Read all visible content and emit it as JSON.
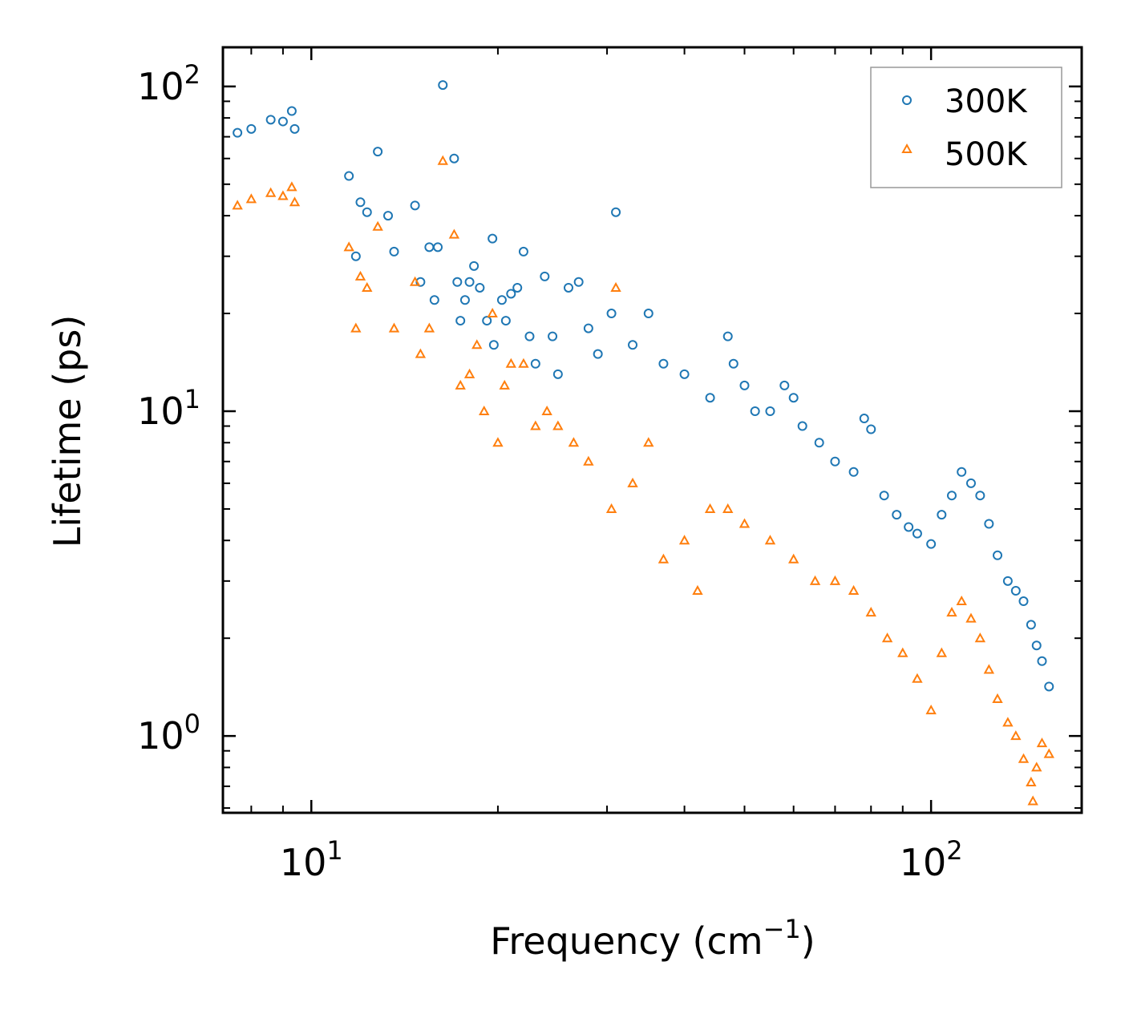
{
  "chart_data": {
    "type": "scatter",
    "xscale": "log",
    "yscale": "log",
    "xlim": [
      7.2,
      175
    ],
    "ylim": [
      0.58,
      132
    ],
    "xlabel": "Frequency (cm",
    "xlabel_sup": "−1",
    "xlabel_end": ")",
    "ylabel": "Lifetime (ps)",
    "x_ticks": [
      {
        "value": 10,
        "base": "10",
        "exp": "1"
      },
      {
        "value": 100,
        "base": "10",
        "exp": "2"
      }
    ],
    "y_ticks": [
      {
        "value": 1,
        "base": "10",
        "exp": "0"
      },
      {
        "value": 10,
        "base": "10",
        "exp": "1"
      },
      {
        "value": 100,
        "base": "10",
        "exp": "2"
      }
    ],
    "legend": {
      "position": "top-right"
    },
    "series": [
      {
        "name": "300K",
        "marker": "circle",
        "color": "#1f77b4",
        "points": [
          [
            7.6,
            72
          ],
          [
            8.0,
            74
          ],
          [
            8.6,
            79
          ],
          [
            9.0,
            78
          ],
          [
            9.3,
            84
          ],
          [
            9.4,
            74
          ],
          [
            11.5,
            53
          ],
          [
            11.8,
            30
          ],
          [
            12.0,
            44
          ],
          [
            12.3,
            41
          ],
          [
            12.8,
            63
          ],
          [
            13.3,
            40
          ],
          [
            13.6,
            31
          ],
          [
            14.7,
            43
          ],
          [
            15.0,
            25
          ],
          [
            15.5,
            32
          ],
          [
            15.8,
            22
          ],
          [
            16.0,
            32
          ],
          [
            16.3,
            101
          ],
          [
            17.0,
            60
          ],
          [
            17.2,
            25
          ],
          [
            17.4,
            19
          ],
          [
            17.7,
            22
          ],
          [
            18.0,
            25
          ],
          [
            18.3,
            28
          ],
          [
            18.7,
            24
          ],
          [
            19.2,
            19
          ],
          [
            19.6,
            34
          ],
          [
            19.7,
            16
          ],
          [
            20.3,
            22
          ],
          [
            20.6,
            19
          ],
          [
            21.0,
            23
          ],
          [
            21.5,
            24
          ],
          [
            22.0,
            31
          ],
          [
            22.5,
            17
          ],
          [
            23.0,
            14
          ],
          [
            23.8,
            26
          ],
          [
            24.5,
            17
          ],
          [
            25.0,
            13
          ],
          [
            26.0,
            24
          ],
          [
            27.0,
            25
          ],
          [
            28.0,
            18
          ],
          [
            29.0,
            15
          ],
          [
            30.5,
            20
          ],
          [
            31.0,
            41
          ],
          [
            33.0,
            16
          ],
          [
            35.0,
            20
          ],
          [
            37.0,
            14
          ],
          [
            40.0,
            13
          ],
          [
            44.0,
            11
          ],
          [
            47.0,
            17
          ],
          [
            48.0,
            14
          ],
          [
            50.0,
            12
          ],
          [
            52.0,
            10
          ],
          [
            55.0,
            10
          ],
          [
            58.0,
            12
          ],
          [
            60.0,
            11
          ],
          [
            62.0,
            9
          ],
          [
            66.0,
            8
          ],
          [
            70.0,
            7
          ],
          [
            75.0,
            6.5
          ],
          [
            78.0,
            9.5
          ],
          [
            80.0,
            8.8
          ],
          [
            84.0,
            5.5
          ],
          [
            88.0,
            4.8
          ],
          [
            92.0,
            4.4
          ],
          [
            95.0,
            4.2
          ],
          [
            100.0,
            3.9
          ],
          [
            104.0,
            4.8
          ],
          [
            108.0,
            5.5
          ],
          [
            112.0,
            6.5
          ],
          [
            116.0,
            6.0
          ],
          [
            120.0,
            5.5
          ],
          [
            124.0,
            4.5
          ],
          [
            128.0,
            3.6
          ],
          [
            133.0,
            3.0
          ],
          [
            137.0,
            2.8
          ],
          [
            141.0,
            2.6
          ],
          [
            145.0,
            2.2
          ],
          [
            148.0,
            1.9
          ],
          [
            151.0,
            1.7
          ],
          [
            155.0,
            1.42
          ]
        ]
      },
      {
        "name": "500K",
        "marker": "triangle",
        "color": "#ff7f0e",
        "points": [
          [
            7.6,
            43
          ],
          [
            8.0,
            45
          ],
          [
            8.6,
            47
          ],
          [
            9.0,
            46
          ],
          [
            9.3,
            49
          ],
          [
            9.4,
            44
          ],
          [
            11.5,
            32
          ],
          [
            11.8,
            18
          ],
          [
            12.0,
            26
          ],
          [
            12.3,
            24
          ],
          [
            12.8,
            37
          ],
          [
            13.6,
            18
          ],
          [
            14.7,
            25
          ],
          [
            15.0,
            15
          ],
          [
            15.5,
            18
          ],
          [
            16.3,
            59
          ],
          [
            17.0,
            35
          ],
          [
            17.4,
            12
          ],
          [
            18.0,
            13
          ],
          [
            18.5,
            16
          ],
          [
            19.0,
            10
          ],
          [
            19.6,
            20
          ],
          [
            20.0,
            8
          ],
          [
            20.5,
            12
          ],
          [
            21.0,
            14
          ],
          [
            22.0,
            14
          ],
          [
            23.0,
            9
          ],
          [
            24.0,
            10
          ],
          [
            25.0,
            9
          ],
          [
            26.5,
            8
          ],
          [
            28.0,
            7
          ],
          [
            30.5,
            5
          ],
          [
            31.0,
            24
          ],
          [
            33.0,
            6
          ],
          [
            35.0,
            8
          ],
          [
            37.0,
            3.5
          ],
          [
            40.0,
            4
          ],
          [
            42.0,
            2.8
          ],
          [
            44.0,
            5
          ],
          [
            47.0,
            5
          ],
          [
            50.0,
            4.5
          ],
          [
            55.0,
            4
          ],
          [
            60.0,
            3.5
          ],
          [
            65.0,
            3
          ],
          [
            70.0,
            3
          ],
          [
            75.0,
            2.8
          ],
          [
            80.0,
            2.4
          ],
          [
            85.0,
            2.0
          ],
          [
            90.0,
            1.8
          ],
          [
            95.0,
            1.5
          ],
          [
            100.0,
            1.2
          ],
          [
            104.0,
            1.8
          ],
          [
            108.0,
            2.4
          ],
          [
            112.0,
            2.6
          ],
          [
            116.0,
            2.3
          ],
          [
            120.0,
            2.0
          ],
          [
            124.0,
            1.6
          ],
          [
            128.0,
            1.3
          ],
          [
            133.0,
            1.1
          ],
          [
            137.0,
            1.0
          ],
          [
            141.0,
            0.85
          ],
          [
            145.0,
            0.72
          ],
          [
            148.0,
            0.8
          ],
          [
            151.0,
            0.95
          ],
          [
            155.0,
            0.88
          ],
          [
            146.0,
            0.63
          ]
        ]
      }
    ]
  }
}
